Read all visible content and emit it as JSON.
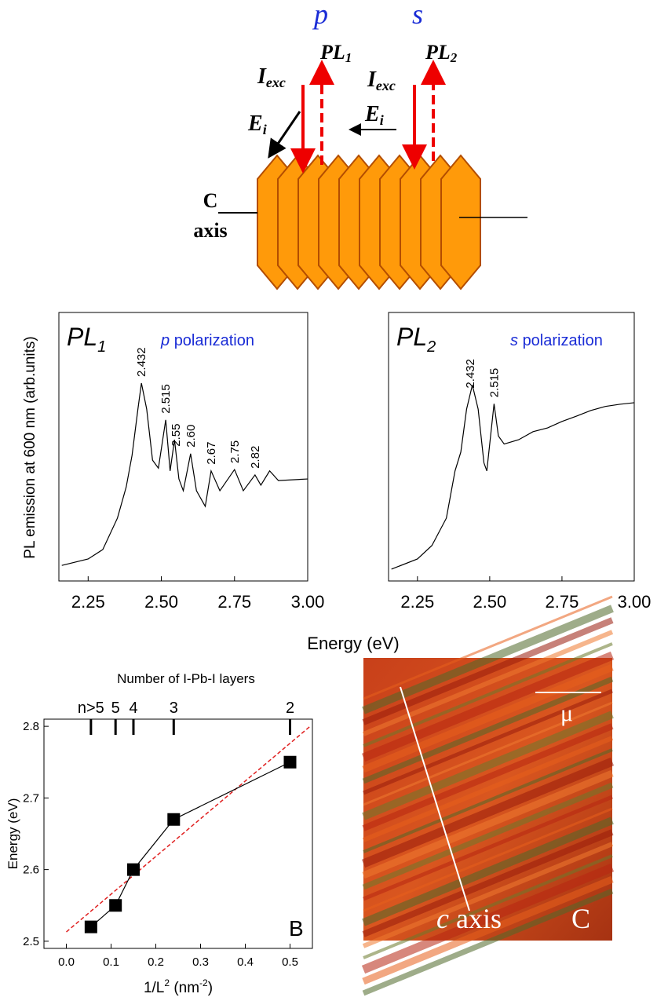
{
  "diagram": {
    "pol_p": "p",
    "pol_s": "s",
    "pl1": {
      "main": "PL",
      "sub": "1"
    },
    "pl2": {
      "main": "PL",
      "sub": "2"
    },
    "iexc1": {
      "main": "I",
      "sub": "exc"
    },
    "iexc2": {
      "main": "I",
      "sub": "exc"
    },
    "ei1": {
      "main": "E",
      "sub": "i"
    },
    "ei2": {
      "main": "E",
      "sub": "i"
    },
    "c_axis": {
      "line1": "C",
      "line2": "axis"
    }
  },
  "chart_data": [
    {
      "type": "line",
      "title": "PL",
      "title_sub": "1",
      "subtitle_italic": "p",
      "subtitle": "polarization",
      "xlabel": "Energy (eV)",
      "ylabel": "PL emission at 600 nm (arb.units)",
      "series": [
        {
          "color": "#000000",
          "x": [
            2.16,
            2.25,
            2.3,
            2.35,
            2.38,
            2.4,
            2.42,
            2.432,
            2.45,
            2.47,
            2.49,
            2.515,
            2.53,
            2.545,
            2.56,
            2.575,
            2.6,
            2.62,
            2.65,
            2.67,
            2.7,
            2.75,
            2.78,
            2.82,
            2.84,
            2.87,
            2.9,
            3.0
          ],
          "y": [
            0.58,
            0.82,
            1.17,
            2.34,
            3.5,
            4.68,
            6.4,
            7.37,
            6.4,
            4.5,
            4.2,
            6.0,
            4.1,
            5.26,
            3.8,
            3.36,
            4.74,
            3.36,
            2.78,
            4.1,
            3.36,
            4.15,
            3.36,
            3.95,
            3.57,
            4.1,
            3.74,
            3.8
          ]
        }
      ],
      "peak_labels": [
        2.432,
        2.515,
        2.55,
        {
          "value": 2.6,
          "label": "2.60"
        },
        2.67,
        2.75,
        2.82
      ],
      "xlim": [
        2.15,
        3.0
      ],
      "ylim": [
        0,
        10
      ],
      "xticks": [
        2.25,
        {
          "value": 2.5,
          "label": "2.50"
        },
        2.75,
        {
          "value": 3,
          "label": "3.00"
        }
      ]
    },
    {
      "type": "line",
      "title": "PL",
      "title_sub": "2",
      "subtitle_italic": "s",
      "subtitle": "polarization",
      "series": [
        {
          "color": "#000000",
          "x": [
            2.16,
            2.25,
            2.3,
            2.35,
            2.38,
            2.4,
            2.42,
            2.44,
            2.46,
            2.48,
            2.49,
            2.515,
            2.53,
            2.55,
            2.6,
            2.65,
            2.7,
            2.75,
            2.8,
            2.85,
            2.9,
            2.95,
            3.0
          ],
          "y": [
            0.44,
            0.82,
            1.32,
            2.34,
            4.1,
            4.8,
            6.4,
            7.3,
            6.4,
            4.4,
            4.1,
            6.6,
            5.4,
            5.1,
            5.26,
            5.56,
            5.7,
            5.94,
            6.14,
            6.35,
            6.5,
            6.58,
            6.64
          ]
        }
      ],
      "peak_labels": [
        2.432,
        2.515
      ],
      "xlim": [
        2.15,
        3.0
      ],
      "ylim": [
        0,
        10
      ],
      "xticks": [
        2.25,
        {
          "value": 2.5,
          "label": "2.50"
        },
        2.75,
        {
          "value": 3,
          "label": "3.00"
        }
      ]
    },
    {
      "type": "scatter",
      "panel_label": "B",
      "ylabel": "Energy (eV)",
      "xlabel": {
        "main": "1/L",
        "sup1": "2",
        "unit_open": " (nm",
        "sup2": "-2",
        "unit_close": ")"
      },
      "x2label": "Number of  I-Pb-I layers",
      "series": [
        {
          "color": "#000000",
          "marker": "square",
          "connect": true,
          "x": [
            0.055,
            0.11,
            0.15,
            0.24,
            0.5
          ],
          "y": [
            2.52,
            2.55,
            2.6,
            2.67,
            2.75
          ]
        }
      ],
      "fit": {
        "color": "#e02020",
        "dashed": true,
        "x": [
          0.0,
          0.545
        ],
        "y": [
          2.513,
          2.8
        ]
      },
      "xlim": [
        -0.05,
        0.55
      ],
      "ylim": [
        2.49,
        2.81
      ],
      "xticks": [
        {
          "value": 0,
          "label": "0.0"
        },
        0.1,
        0.2,
        0.3,
        0.4,
        0.5
      ],
      "yticks": [
        2.5,
        2.6,
        2.7,
        2.8
      ],
      "x2ticks": [
        {
          "value": 0.055,
          "label": "n>5"
        },
        {
          "value": 0.11,
          "label": "5"
        },
        {
          "value": 0.15,
          "label": "4"
        },
        {
          "value": 0.24,
          "label": "3"
        },
        {
          "value": 0.5,
          "label": "2"
        }
      ]
    }
  ],
  "photo": {
    "scale": "μ",
    "axis_italic": "c",
    "axis": "axis",
    "panel_label": "C"
  }
}
